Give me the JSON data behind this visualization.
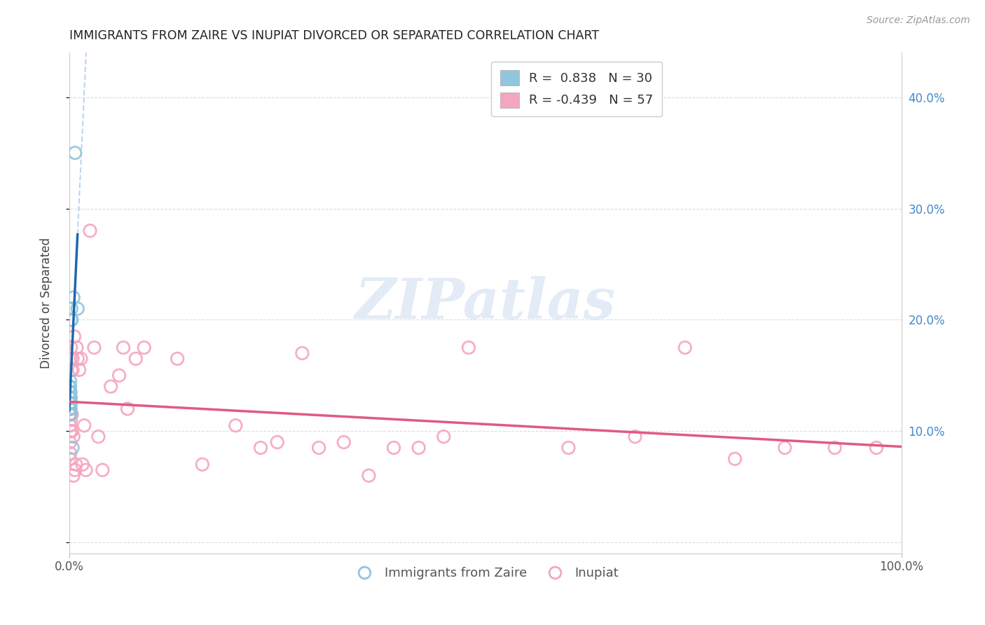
{
  "title": "IMMIGRANTS FROM ZAIRE VS INUPIAT DIVORCED OR SEPARATED CORRELATION CHART",
  "source": "Source: ZipAtlas.com",
  "ylabel": "Divorced or Separated",
  "blue_color": "#92c5de",
  "pink_color": "#f4a6be",
  "blue_line_color": "#2166ac",
  "pink_line_color": "#e05a80",
  "blue_dash_color": "#a8c8e8",
  "blue_scatter_x": [
    0.0002,
    0.0003,
    0.0004,
    0.0004,
    0.0005,
    0.0005,
    0.0006,
    0.0007,
    0.0008,
    0.0009,
    0.001,
    0.001,
    0.001,
    0.001,
    0.001,
    0.0012,
    0.0013,
    0.0014,
    0.0015,
    0.0016,
    0.0018,
    0.002,
    0.002,
    0.0022,
    0.0025,
    0.003,
    0.004,
    0.005,
    0.007,
    0.01
  ],
  "blue_scatter_y": [
    0.13,
    0.14,
    0.125,
    0.135,
    0.12,
    0.14,
    0.13,
    0.125,
    0.13,
    0.135,
    0.115,
    0.125,
    0.13,
    0.14,
    0.145,
    0.12,
    0.125,
    0.13,
    0.135,
    0.12,
    0.13,
    0.115,
    0.125,
    0.2,
    0.21,
    0.2,
    0.085,
    0.22,
    0.35,
    0.21
  ],
  "pink_scatter_x": [
    0.0003,
    0.0005,
    0.0008,
    0.001,
    0.001,
    0.0012,
    0.0015,
    0.0018,
    0.002,
    0.002,
    0.0025,
    0.003,
    0.003,
    0.004,
    0.004,
    0.005,
    0.005,
    0.006,
    0.007,
    0.008,
    0.009,
    0.01,
    0.012,
    0.014,
    0.016,
    0.018,
    0.02,
    0.025,
    0.03,
    0.035,
    0.04,
    0.05,
    0.06,
    0.065,
    0.07,
    0.08,
    0.09,
    0.13,
    0.16,
    0.2,
    0.23,
    0.25,
    0.28,
    0.3,
    0.33,
    0.36,
    0.39,
    0.42,
    0.45,
    0.48,
    0.6,
    0.68,
    0.74,
    0.8,
    0.86,
    0.92,
    0.97
  ],
  "pink_scatter_y": [
    0.115,
    0.075,
    0.09,
    0.105,
    0.125,
    0.08,
    0.1,
    0.165,
    0.11,
    0.175,
    0.155,
    0.1,
    0.115,
    0.155,
    0.165,
    0.06,
    0.095,
    0.185,
    0.065,
    0.07,
    0.175,
    0.165,
    0.155,
    0.165,
    0.07,
    0.105,
    0.065,
    0.28,
    0.175,
    0.095,
    0.065,
    0.14,
    0.15,
    0.175,
    0.12,
    0.165,
    0.175,
    0.165,
    0.07,
    0.105,
    0.085,
    0.09,
    0.17,
    0.085,
    0.09,
    0.06,
    0.085,
    0.085,
    0.095,
    0.175,
    0.085,
    0.095,
    0.175,
    0.075,
    0.085,
    0.085,
    0.085
  ],
  "watermark": "ZIPatlas",
  "legend_r1_label": "R =  0.838   N = 30",
  "legend_r2_label": "R = -0.439   N = 57",
  "legend_r1_color_num": "#1a6ab5",
  "legend_r2_color_num": "#d0306a",
  "figsize": [
    14.06,
    8.92
  ],
  "dpi": 100,
  "xlim": [
    0.0,
    1.0
  ],
  "ylim": [
    -0.01,
    0.44
  ],
  "yticks": [
    0.0,
    0.1,
    0.2,
    0.3,
    0.4
  ],
  "ytick_right_labels": [
    "",
    "10.0%",
    "20.0%",
    "30.0%",
    "40.0%"
  ]
}
